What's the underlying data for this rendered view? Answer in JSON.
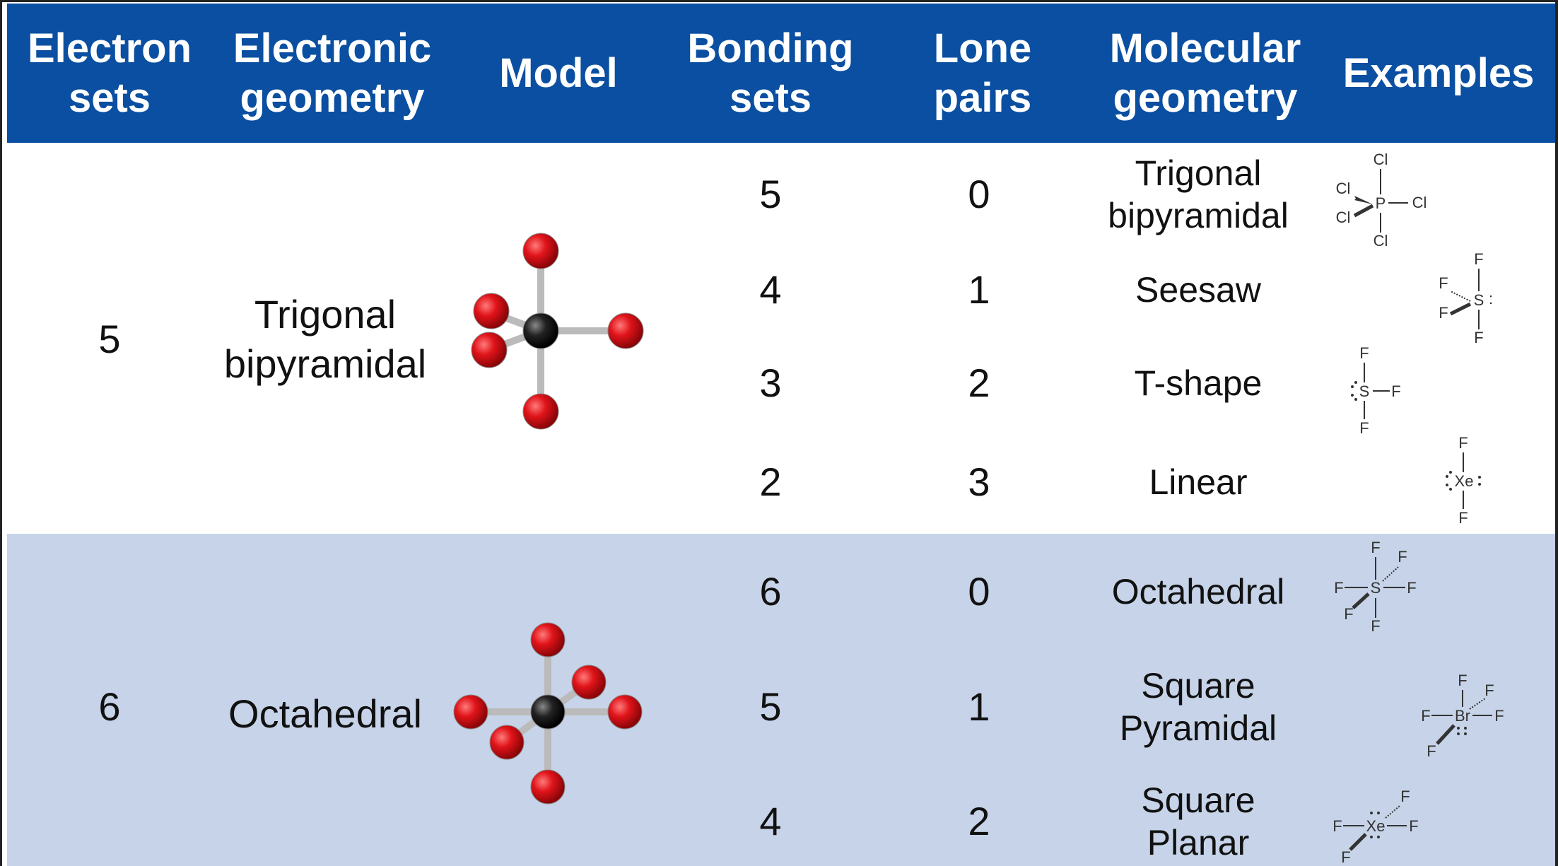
{
  "header": {
    "electron_sets": "Electron\nsets",
    "electronic_geometry": "Electronic\ngeometry",
    "model": "Model",
    "bonding_sets": "Bonding\nsets",
    "lone_pairs": "Lone\npairs",
    "molecular_geometry": "Molecular\ngeometry",
    "examples": "Examples"
  },
  "groups": [
    {
      "electron_sets": "5",
      "electronic_geometry": "Trigonal\nbipyramidal",
      "rows": [
        {
          "bonding_sets": "5",
          "lone_pairs": "0",
          "molecular_geometry": "Trigonal\nbipyramidal",
          "example": "PCl5"
        },
        {
          "bonding_sets": "4",
          "lone_pairs": "1",
          "molecular_geometry": "Seesaw",
          "example": "SF4"
        },
        {
          "bonding_sets": "3",
          "lone_pairs": "2",
          "molecular_geometry": "T-shape",
          "example": "SF3"
        },
        {
          "bonding_sets": "2",
          "lone_pairs": "3",
          "molecular_geometry": "Linear",
          "example": "XeF2"
        }
      ]
    },
    {
      "electron_sets": "6",
      "electronic_geometry": "Octahedral",
      "rows": [
        {
          "bonding_sets": "6",
          "lone_pairs": "0",
          "molecular_geometry": "Octahedral",
          "example": "SF6"
        },
        {
          "bonding_sets": "5",
          "lone_pairs": "1",
          "molecular_geometry": "Square\nPyramidal",
          "example": "BrF5"
        },
        {
          "bonding_sets": "4",
          "lone_pairs": "2",
          "molecular_geometry": "Square\nPlanar",
          "example": "XeF4"
        }
      ]
    }
  ],
  "example_atoms": {
    "pcl5": {
      "center": "P",
      "ligand": "Cl"
    },
    "sf4": {
      "center": "S",
      "ligand": "F"
    },
    "sf3": {
      "center": "S",
      "ligand": "F"
    },
    "xef2": {
      "center": "Xe",
      "ligand": "F"
    },
    "sf6": {
      "center": "S",
      "ligand": "F"
    },
    "brf5": {
      "center": "Br",
      "ligand": "F"
    },
    "xef4": {
      "center": "Xe",
      "ligand": "F"
    }
  },
  "colors": {
    "header_bg": "#0a4fa1",
    "octahedral_band": "#c6d3e8",
    "atom_outer": "#e0141a",
    "atom_center": "#1a1a1a"
  }
}
